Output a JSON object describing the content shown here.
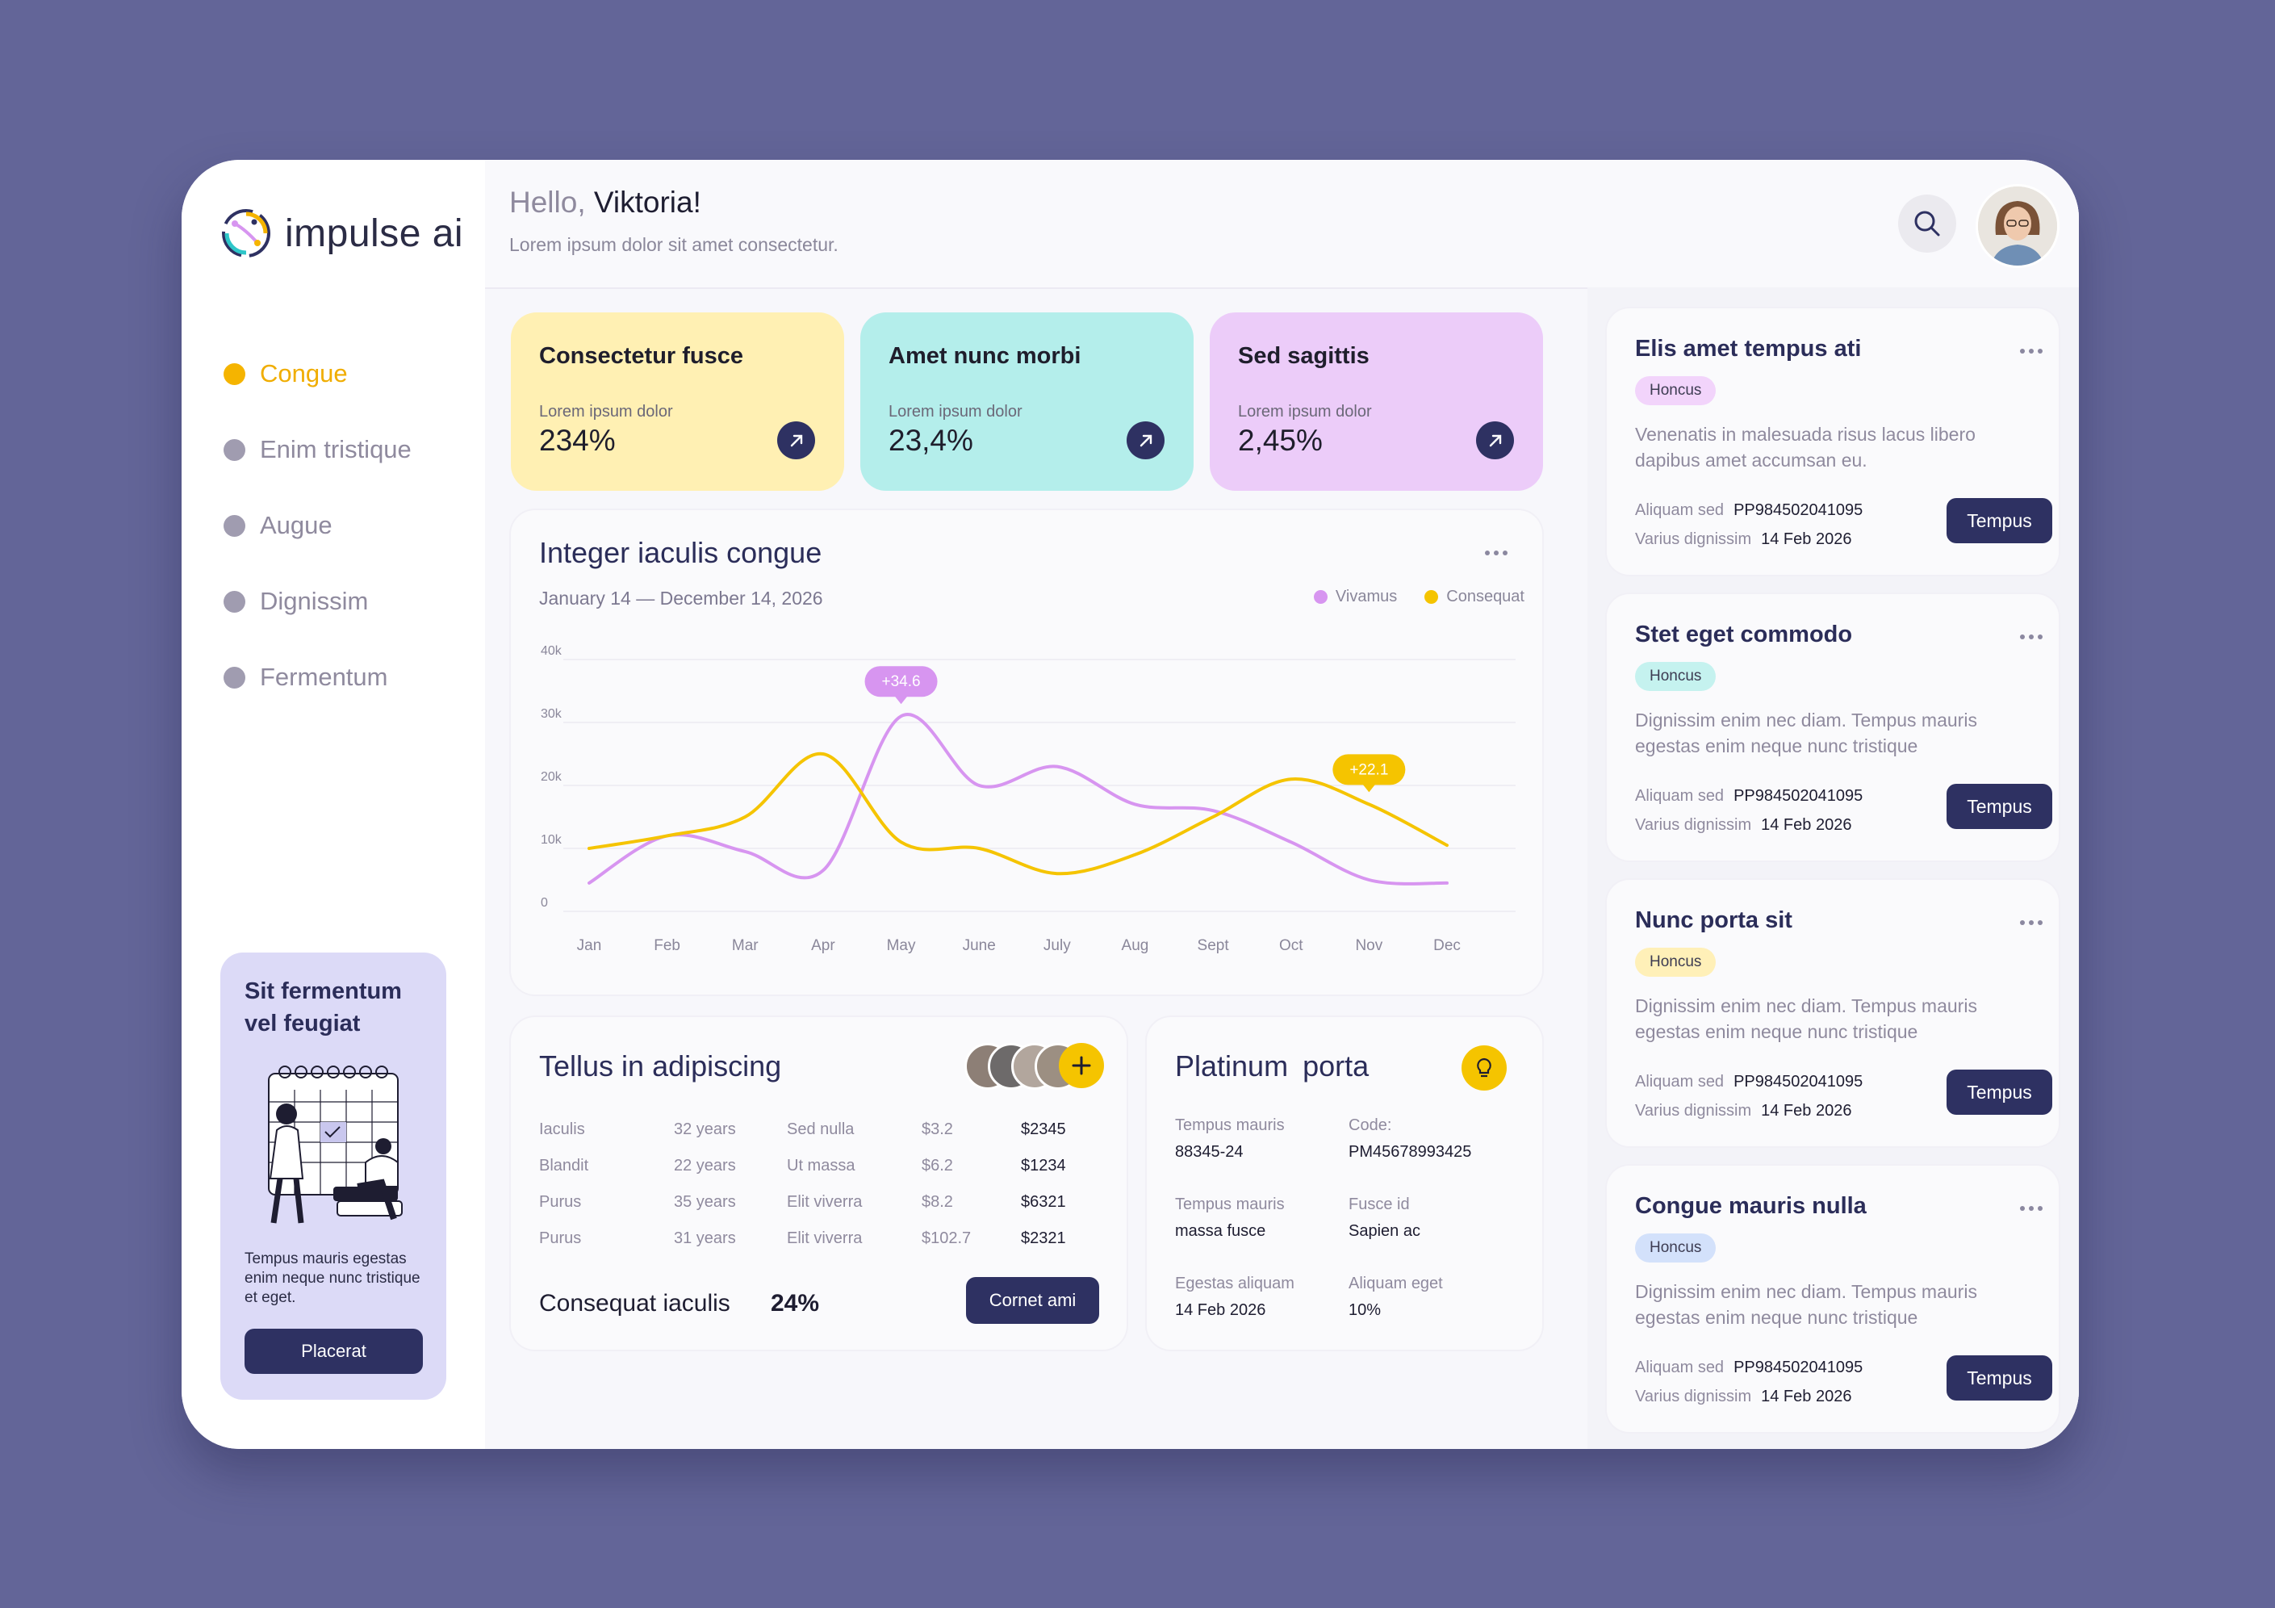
{
  "app": {
    "name": "impulse ai"
  },
  "sidebar": {
    "items": [
      {
        "label": "Congue",
        "active": true
      },
      {
        "label": "Enim tristique",
        "active": false
      },
      {
        "label": "Augue",
        "active": false
      },
      {
        "label": "Dignissim",
        "active": false
      },
      {
        "label": "Fermentum",
        "active": false
      }
    ],
    "promo": {
      "title": "Sit fermentum vel feugiat",
      "text": "Tempus mauris egestas enim neque nunc tristique et eget.",
      "button": "Placerat"
    }
  },
  "header": {
    "hello": "Hello,",
    "name": "Viktoria!",
    "subtitle": "Lorem ipsum dolor sit amet consectetur."
  },
  "stats": [
    {
      "title": "Consectetur fusce",
      "label": "Lorem ipsum dolor",
      "value": "234%",
      "color": "#fff0b3"
    },
    {
      "title": "Amet nunc morbi",
      "label": "Lorem ipsum dolor",
      "value": "23,4%",
      "color": "#b4eeeb"
    },
    {
      "title": "Sed sagittis",
      "label": "Lorem ipsum dolor",
      "value": "2,45%",
      "color": "#ecccf9"
    }
  ],
  "chart": {
    "title": "Integer iaculis congue",
    "dates": "January 14 —  December 14, 2026",
    "legend": [
      {
        "name": "Vivamus",
        "color": "#d795f0"
      },
      {
        "name": "Consequat",
        "color": "#f5c400"
      }
    ]
  },
  "chart_data": {
    "type": "line",
    "categories": [
      "Jan",
      "Feb",
      "Mar",
      "Apr",
      "May",
      "June",
      "July",
      "Aug",
      "Sept",
      "Oct",
      "Nov",
      "Dec"
    ],
    "yticks": [
      "0",
      "10k",
      "20k",
      "30k",
      "40k"
    ],
    "ylim": [
      0,
      40000
    ],
    "series": [
      {
        "name": "Vivamus",
        "color": "#d795f0",
        "values": [
          4500,
          12000,
          9500,
          6500,
          31000,
          20000,
          23000,
          17000,
          16000,
          11000,
          5000,
          4500
        ]
      },
      {
        "name": "Consequat",
        "color": "#f5c400",
        "values": [
          10000,
          12000,
          15000,
          25000,
          11000,
          10000,
          6000,
          9000,
          15000,
          21000,
          17000,
          10500
        ]
      }
    ],
    "annotations": [
      {
        "series": "Vivamus",
        "category": "May",
        "label": "+34.6"
      },
      {
        "series": "Consequat",
        "category": "Nov",
        "label": "+22.1"
      }
    ]
  },
  "table": {
    "title": "Tellus in adipiscing",
    "rows": [
      [
        "Iaculis",
        "32 years",
        "Sed nulla",
        "$3.2",
        "$2345"
      ],
      [
        "Blandit",
        "22 years",
        "Ut massa",
        "$6.2",
        "$1234"
      ],
      [
        "Purus",
        "35 years",
        "Elit viverra",
        "$8.2",
        "$6321"
      ],
      [
        "Purus",
        "31 years",
        "Elit viverra",
        "$102.7",
        "$2321"
      ]
    ],
    "footer_label": "Consequat iaculis",
    "footer_value": "24%",
    "button": "Cornet ami"
  },
  "platinum": {
    "title": "Platinum  porta",
    "items": [
      {
        "k": "Tempus mauris",
        "v": "88345-24"
      },
      {
        "k": "Code:",
        "v": "PM45678993425"
      },
      {
        "k": "Tempus mauris",
        "v": "massa fusce"
      },
      {
        "k": "Fusce id",
        "v": "Sapien ac"
      },
      {
        "k": "Egestas aliquam",
        "v": "14 Feb 2026"
      },
      {
        "k": "Aliquam eget",
        "v": "10%"
      }
    ]
  },
  "tasks": [
    {
      "title": "Elis amet tempus ati",
      "badge": "Honcus",
      "badge_color": "#f2d4fb",
      "desc": "Venenatis in malesuada risus lacus libero dapibus amet accumsan eu.",
      "meta1_k": "Aliquam sed",
      "meta1_v": "PP984502041095",
      "meta2_k": "Varius dignissim",
      "meta2_v": "14 Feb 2026",
      "button": "Tempus"
    },
    {
      "title": "Stet eget commodo",
      "badge": "Honcus",
      "badge_color": "#c5f2ef",
      "desc": "Dignissim enim nec diam. Tempus mauris egestas enim neque nunc tristique",
      "meta1_k": "Aliquam sed",
      "meta1_v": "PP984502041095",
      "meta2_k": "Varius dignissim",
      "meta2_v": "14 Feb 2026",
      "button": "Tempus"
    },
    {
      "title": "Nunc porta sit",
      "badge": "Honcus",
      "badge_color": "#fff0b8",
      "desc": "Dignissim enim nec diam. Tempus mauris egestas enim neque nunc tristique",
      "meta1_k": "Aliquam sed",
      "meta1_v": "PP984502041095",
      "meta2_k": "Varius dignissim",
      "meta2_v": "14 Feb 2026",
      "button": "Tempus"
    },
    {
      "title": "Congue mauris nulla",
      "badge": "Honcus",
      "badge_color": "#d3e1fb",
      "desc": "Dignissim enim nec diam. Tempus mauris egestas enim neque nunc tristique",
      "meta1_k": "Aliquam sed",
      "meta1_v": "PP984502041095",
      "meta2_k": "Varius dignissim",
      "meta2_v": "14 Feb 2026",
      "button": "Tempus"
    }
  ]
}
